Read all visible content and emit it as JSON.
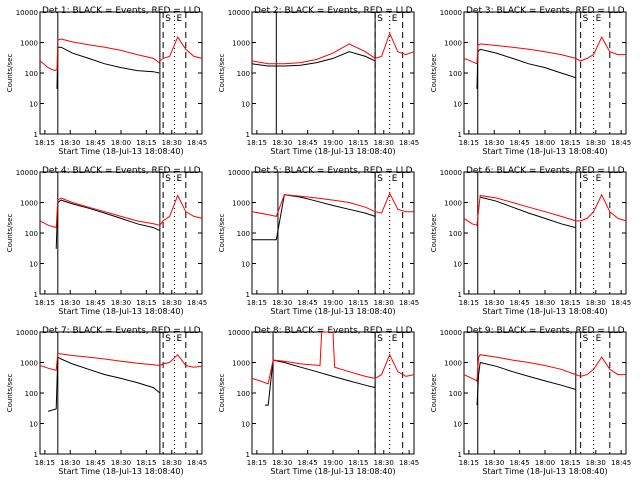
{
  "ylabel": "Counts/sec",
  "xlabel": "Start Time (18-Jul-13 18:08:40)",
  "y_ticks": [
    "1",
    "10",
    "100",
    "1000",
    "10000"
  ],
  "ylim": [
    1,
    10000
  ],
  "yscale": "log",
  "colors": {
    "events": "#000000",
    "lld": "#ff0000"
  },
  "marker_labels": {
    "s": "S",
    "e": "E"
  },
  "chart_data": [
    {
      "type": "line",
      "title": "Det 1: BLACK = Events, RED = LLD",
      "x_ticks": [
        "18:15",
        "18:30",
        "18:45",
        "18:00",
        "18:15",
        "18:30",
        "18:45"
      ],
      "series": [
        {
          "name": "Events",
          "x": [
            0.0,
            0.05,
            0.09,
            0.105,
            0.11,
            0.13,
            0.2,
            0.3,
            0.4,
            0.5,
            0.6,
            0.7,
            0.735,
            0.74,
            0.76,
            0.8,
            0.85,
            0.9,
            0.95,
            1.0
          ],
          "y": [
            null,
            null,
            null,
            30,
            700,
            700,
            450,
            300,
            200,
            150,
            120,
            110,
            100,
            null,
            null,
            null,
            null,
            null,
            null,
            null
          ]
        },
        {
          "name": "LLD",
          "x": [
            0.0,
            0.05,
            0.09,
            0.105,
            0.11,
            0.13,
            0.2,
            0.3,
            0.4,
            0.5,
            0.6,
            0.7,
            0.735,
            0.74,
            0.76,
            0.8,
            0.85,
            0.9,
            0.95,
            1.0
          ],
          "y": [
            250,
            150,
            120,
            130,
            1200,
            1300,
            1050,
            850,
            700,
            550,
            400,
            300,
            220,
            250,
            300,
            350,
            1500,
            600,
            350,
            300
          ]
        }
      ]
    },
    {
      "type": "line",
      "title": "Det 2: BLACK = Events, RED = LLD",
      "x_ticks": [
        "18:15",
        "18:30",
        "18:45",
        "19:00",
        "18:15",
        "18:30",
        "18:45"
      ],
      "series": [
        {
          "name": "Events",
          "x": [
            0.0,
            0.1,
            0.2,
            0.3,
            0.4,
            0.5,
            0.6,
            0.7,
            0.76
          ],
          "y": [
            200,
            170,
            170,
            180,
            220,
            300,
            500,
            350,
            250
          ]
        },
        {
          "name": "LLD",
          "x": [
            0.0,
            0.1,
            0.2,
            0.3,
            0.4,
            0.5,
            0.6,
            0.7,
            0.76,
            0.8,
            0.85,
            0.9,
            0.95,
            1.0
          ],
          "y": [
            250,
            200,
            200,
            220,
            280,
            450,
            900,
            500,
            300,
            350,
            2000,
            500,
            400,
            500
          ]
        }
      ]
    },
    {
      "type": "line",
      "title": "Det 3: BLACK = Events, RED = LLD",
      "x_ticks": [
        "18:15",
        "18:30",
        "18:45",
        "18:00",
        "18:15",
        "18:30",
        "18:45"
      ],
      "series": [
        {
          "name": "Events",
          "x": [
            0.0,
            0.04,
            0.08,
            0.085,
            0.1,
            0.2,
            0.3,
            0.4,
            0.5,
            0.6,
            0.69
          ],
          "y": [
            null,
            null,
            30,
            500,
            600,
            450,
            300,
            200,
            150,
            100,
            70
          ]
        },
        {
          "name": "LLD",
          "x": [
            0.0,
            0.04,
            0.08,
            0.085,
            0.1,
            0.2,
            0.3,
            0.4,
            0.5,
            0.6,
            0.69,
            0.72,
            0.76,
            0.8,
            0.85,
            0.9,
            0.95,
            1.0
          ],
          "y": [
            300,
            250,
            200,
            800,
            900,
            800,
            700,
            600,
            500,
            400,
            300,
            250,
            300,
            400,
            1500,
            500,
            400,
            400
          ]
        }
      ]
    },
    {
      "type": "line",
      "title": "Det 4: BLACK = Events, RED = LLD",
      "x_ticks": [
        "18:15",
        "18:30",
        "18:45",
        "18:30",
        "18:15",
        "18:30",
        "18:45"
      ],
      "series": [
        {
          "name": "Events",
          "x": [
            0.0,
            0.1,
            0.11,
            0.13,
            0.2,
            0.3,
            0.4,
            0.5,
            0.6,
            0.7,
            0.74
          ],
          "y": [
            null,
            30,
            1000,
            1200,
            900,
            650,
            450,
            300,
            200,
            150,
            120
          ]
        },
        {
          "name": "LLD",
          "x": [
            0.0,
            0.05,
            0.1,
            0.11,
            0.13,
            0.2,
            0.3,
            0.4,
            0.5,
            0.6,
            0.7,
            0.74,
            0.76,
            0.8,
            0.85,
            0.9,
            0.95,
            1.0
          ],
          "y": [
            250,
            180,
            150,
            1200,
            1400,
            1000,
            700,
            500,
            350,
            250,
            200,
            180,
            250,
            350,
            1700,
            500,
            350,
            300
          ]
        }
      ]
    },
    {
      "type": "line",
      "title": "Det 5: BLACK = Events, RED = LLD",
      "x_ticks": [
        "18:15",
        "18:30",
        "18:45",
        "19:00",
        "18:15",
        "18:30",
        "18:45"
      ],
      "series": [
        {
          "name": "Events",
          "x": [
            0.0,
            0.15,
            0.2,
            0.3,
            0.4,
            0.5,
            0.6,
            0.7,
            0.76
          ],
          "y": [
            60,
            60,
            1800,
            1500,
            1100,
            800,
            600,
            450,
            350
          ]
        },
        {
          "name": "LLD",
          "x": [
            0.0,
            0.1,
            0.15,
            0.2,
            0.3,
            0.4,
            0.5,
            0.6,
            0.7,
            0.76,
            0.8,
            0.85,
            0.9,
            0.95,
            1.0
          ],
          "y": [
            500,
            400,
            350,
            1800,
            1600,
            1400,
            1200,
            1000,
            700,
            500,
            450,
            2000,
            600,
            500,
            500
          ]
        }
      ]
    },
    {
      "type": "line",
      "title": "Det 6: BLACK = Events, RED = LLD",
      "x_ticks": [
        "18:15",
        "18:30",
        "18:45",
        "18:30",
        "18:15",
        "18:30",
        "18:45"
      ],
      "series": [
        {
          "name": "Events",
          "x": [
            0.0,
            0.08,
            0.1,
            0.2,
            0.3,
            0.4,
            0.5,
            0.6,
            0.69
          ],
          "y": [
            null,
            null,
            1500,
            1100,
            700,
            450,
            300,
            200,
            150
          ]
        },
        {
          "name": "LLD",
          "x": [
            0.0,
            0.05,
            0.08,
            0.1,
            0.2,
            0.3,
            0.4,
            0.5,
            0.6,
            0.69,
            0.72,
            0.76,
            0.8,
            0.85,
            0.9,
            0.95,
            1.0
          ],
          "y": [
            300,
            200,
            180,
            1700,
            1400,
            1000,
            700,
            500,
            350,
            250,
            250,
            300,
            500,
            1800,
            500,
            300,
            250
          ]
        }
      ]
    },
    {
      "type": "line",
      "title": "Det 7: BLACK = Events, RED = LLD",
      "x_ticks": [
        "18:15",
        "18:30",
        "18:45",
        "18:30",
        "18:15",
        "18:30",
        "18:45"
      ],
      "series": [
        {
          "name": "Events",
          "x": [
            0.0,
            0.05,
            0.1,
            0.11,
            0.13,
            0.2,
            0.3,
            0.4,
            0.5,
            0.6,
            0.7,
            0.74
          ],
          "y": [
            null,
            25,
            30,
            1500,
            1300,
            900,
            600,
            400,
            300,
            220,
            150,
            100
          ]
        },
        {
          "name": "LLD",
          "x": [
            0.0,
            0.05,
            0.1,
            0.11,
            0.13,
            0.2,
            0.3,
            0.4,
            0.5,
            0.6,
            0.7,
            0.74,
            0.76,
            0.8,
            0.85,
            0.9,
            0.95,
            1.0
          ],
          "y": [
            800,
            650,
            550,
            2000,
            1900,
            1700,
            1500,
            1300,
            1100,
            950,
            850,
            800,
            900,
            1000,
            1800,
            800,
            700,
            750
          ]
        }
      ]
    },
    {
      "type": "line",
      "title": "Det 8: BLACK = Events, RED = LLD",
      "x_ticks": [
        "18:15",
        "18:30",
        "18:45",
        "19:00",
        "18:15",
        "18:30",
        "18:45"
      ],
      "series": [
        {
          "name": "Events",
          "x": [
            0.0,
            0.08,
            0.1,
            0.13,
            0.2,
            0.3,
            0.4,
            0.5,
            0.6,
            0.7,
            0.76
          ],
          "y": [
            null,
            40,
            40,
            1200,
            1000,
            700,
            500,
            350,
            250,
            180,
            150
          ]
        },
        {
          "name": "LLD",
          "x": [
            0.0,
            0.05,
            0.1,
            0.13,
            0.2,
            0.3,
            0.42,
            0.43,
            0.5,
            0.51,
            0.6,
            0.7,
            0.76,
            0.8,
            0.85,
            0.9,
            0.95,
            1.0
          ],
          "y": [
            300,
            250,
            200,
            1200,
            1100,
            900,
            800,
            10000,
            10000,
            700,
            500,
            350,
            300,
            400,
            1800,
            500,
            350,
            400
          ]
        }
      ]
    },
    {
      "type": "line",
      "title": "Det 9: BLACK = Events, RED = LLD",
      "x_ticks": [
        "18:15",
        "18:30",
        "18:45",
        "18:00",
        "18:15",
        "18:30",
        "18:45"
      ],
      "series": [
        {
          "name": "Events",
          "x": [
            0.0,
            0.08,
            0.09,
            0.1,
            0.2,
            0.3,
            0.4,
            0.5,
            0.6,
            0.69
          ],
          "y": [
            null,
            40,
            400,
            1000,
            750,
            500,
            350,
            250,
            180,
            130
          ]
        },
        {
          "name": "LLD",
          "x": [
            0.0,
            0.05,
            0.08,
            0.09,
            0.1,
            0.2,
            0.3,
            0.4,
            0.5,
            0.6,
            0.69,
            0.72,
            0.76,
            0.8,
            0.85,
            0.9,
            0.95,
            1.0
          ],
          "y": [
            400,
            300,
            250,
            1500,
            1800,
            1500,
            1200,
            1000,
            800,
            600,
            400,
            350,
            400,
            600,
            1500,
            600,
            400,
            400
          ]
        }
      ]
    }
  ]
}
